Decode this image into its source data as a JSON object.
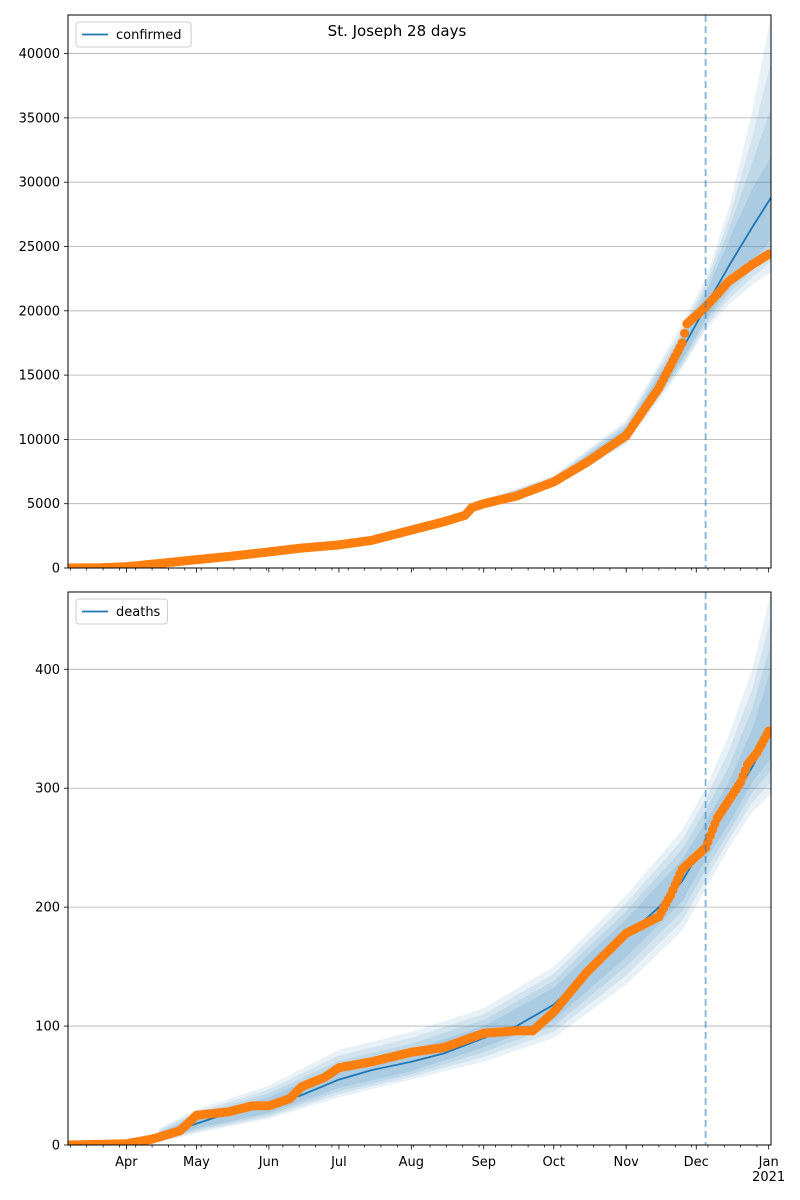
{
  "figure": {
    "title": "St. Joseph 28 days"
  },
  "chart_data": [
    {
      "type": "line",
      "legend": [
        "confirmed"
      ],
      "legend_placement": "upper-left",
      "grid": "horizontal",
      "ylim": [
        0,
        43000
      ],
      "yticks": [
        0,
        5000,
        10000,
        15000,
        20000,
        25000,
        30000,
        35000,
        40000
      ],
      "xlim": [
        "2020-03-07",
        "2021-01-02"
      ],
      "forecast_start": "2020-12-05",
      "colors": {
        "model": "#1f77b4",
        "observed": "#ff7f0e",
        "band": "#1f77b4"
      },
      "series": [
        {
          "name": "confirmed",
          "kind": "model",
          "x": [
            "2020-03-07",
            "2020-03-21",
            "2020-04-01",
            "2020-04-15",
            "2020-05-01",
            "2020-05-15",
            "2020-06-01",
            "2020-06-15",
            "2020-07-01",
            "2020-07-15",
            "2020-08-01",
            "2020-08-15",
            "2020-08-25",
            "2020-09-01",
            "2020-09-15",
            "2020-10-01",
            "2020-10-15",
            "2020-11-01",
            "2020-11-15",
            "2020-11-25",
            "2020-12-05",
            "2020-12-15",
            "2020-12-25",
            "2021-01-02"
          ],
          "y": [
            0,
            20,
            100,
            350,
            650,
            900,
            1250,
            1550,
            1850,
            2200,
            2950,
            3700,
            4300,
            5000,
            5700,
            6700,
            8200,
            10400,
            13800,
            17000,
            20300,
            23500,
            26500,
            28800
          ]
        },
        {
          "name": "band",
          "kind": "interval",
          "x": [
            "2020-09-01",
            "2020-10-01",
            "2020-11-01",
            "2020-11-25",
            "2020-12-05",
            "2020-12-15",
            "2020-12-25",
            "2021-01-02"
          ],
          "outer_low": [
            4700,
            6300,
            9600,
            15500,
            18500,
            20500,
            22000,
            23000
          ],
          "outer_high": [
            5300,
            7200,
            11500,
            19000,
            22500,
            28000,
            35500,
            43000
          ],
          "inner_low": [
            4850,
            6500,
            10000,
            16200,
            19300,
            21800,
            23800,
            25500
          ],
          "inner_high": [
            5150,
            6900,
            10900,
            17800,
            21300,
            25500,
            29500,
            32000
          ]
        },
        {
          "name": "observed",
          "kind": "points",
          "x": [
            "2020-03-07",
            "2020-03-21",
            "2020-04-01",
            "2020-04-15",
            "2020-05-01",
            "2020-05-15",
            "2020-06-01",
            "2020-06-15",
            "2020-07-01",
            "2020-07-15",
            "2020-08-01",
            "2020-08-15",
            "2020-08-24",
            "2020-08-27",
            "2020-09-01",
            "2020-09-15",
            "2020-10-01",
            "2020-10-15",
            "2020-11-01",
            "2020-11-15",
            "2020-11-25",
            "2020-11-27",
            "2020-12-05",
            "2020-12-15",
            "2020-12-25",
            "2021-01-01"
          ],
          "y": [
            0,
            20,
            100,
            350,
            650,
            900,
            1250,
            1550,
            1800,
            2150,
            2950,
            3600,
            4100,
            4700,
            5000,
            5600,
            6700,
            8200,
            10300,
            14000,
            17500,
            19000,
            20300,
            22300,
            23600,
            24400
          ]
        }
      ]
    },
    {
      "type": "line",
      "legend": [
        "deaths"
      ],
      "legend_placement": "upper-left",
      "grid": "horizontal",
      "ylim": [
        0,
        465
      ],
      "yticks": [
        0,
        100,
        200,
        300,
        400
      ],
      "xlim": [
        "2020-03-07",
        "2021-01-02"
      ],
      "forecast_start": "2020-12-05",
      "x_tick_labels": [
        "Apr",
        "May",
        "Jun",
        "Jul",
        "Aug",
        "Sep",
        "Oct",
        "Nov",
        "Dec",
        "Jan\n2021"
      ],
      "x_ticks": [
        "2020-04-01",
        "2020-05-01",
        "2020-06-01",
        "2020-07-01",
        "2020-08-01",
        "2020-09-01",
        "2020-10-01",
        "2020-11-01",
        "2020-12-01",
        "2021-01-01"
      ],
      "colors": {
        "model": "#1f77b4",
        "observed": "#ff7f0e",
        "band": "#1f77b4"
      },
      "series": [
        {
          "name": "deaths",
          "kind": "model",
          "x": [
            "2020-03-07",
            "2020-04-01",
            "2020-04-15",
            "2020-05-01",
            "2020-05-15",
            "2020-06-01",
            "2020-06-15",
            "2020-07-01",
            "2020-07-15",
            "2020-08-01",
            "2020-08-15",
            "2020-09-01",
            "2020-09-15",
            "2020-10-01",
            "2020-10-15",
            "2020-11-01",
            "2020-11-15",
            "2020-11-25",
            "2020-12-05",
            "2020-12-15",
            "2020-12-25",
            "2021-01-02"
          ],
          "y": [
            0,
            1,
            7,
            18,
            27,
            33,
            42,
            55,
            63,
            70,
            77,
            90,
            100,
            118,
            145,
            175,
            200,
            222,
            255,
            285,
            318,
            348
          ]
        },
        {
          "name": "band",
          "kind": "interval",
          "x": [
            "2020-04-15",
            "2020-05-01",
            "2020-06-01",
            "2020-07-01",
            "2020-08-01",
            "2020-09-01",
            "2020-10-01",
            "2020-11-01",
            "2020-11-25",
            "2020-12-05",
            "2020-12-15",
            "2020-12-25",
            "2021-01-02"
          ],
          "outer_low": [
            2,
            10,
            22,
            40,
            55,
            70,
            90,
            135,
            180,
            215,
            250,
            280,
            295
          ],
          "outer_high": [
            14,
            30,
            50,
            80,
            95,
            115,
            150,
            210,
            265,
            300,
            345,
            400,
            465
          ],
          "inner_low": [
            4,
            14,
            27,
            48,
            62,
            82,
            105,
            158,
            205,
            240,
            270,
            305,
            325
          ],
          "inner_high": [
            10,
            24,
            40,
            66,
            80,
            100,
            132,
            190,
            240,
            272,
            305,
            350,
            400
          ]
        },
        {
          "name": "observed",
          "kind": "points",
          "x": [
            "2020-03-07",
            "2020-04-01",
            "2020-04-12",
            "2020-04-24",
            "2020-05-01",
            "2020-05-15",
            "2020-05-25",
            "2020-06-01",
            "2020-06-10",
            "2020-06-15",
            "2020-06-25",
            "2020-07-01",
            "2020-07-15",
            "2020-08-01",
            "2020-08-15",
            "2020-09-01",
            "2020-09-15",
            "2020-09-22",
            "2020-10-01",
            "2020-10-15",
            "2020-11-01",
            "2020-11-15",
            "2020-11-20",
            "2020-11-25",
            "2020-12-05",
            "2020-12-10",
            "2020-12-15",
            "2020-12-20",
            "2020-12-23",
            "2020-12-27",
            "2021-01-01"
          ],
          "y": [
            0,
            1,
            5,
            12,
            25,
            28,
            33,
            33,
            39,
            49,
            57,
            65,
            70,
            78,
            82,
            94,
            96,
            96,
            112,
            145,
            178,
            192,
            210,
            232,
            250,
            275,
            290,
            305,
            320,
            330,
            348
          ]
        }
      ]
    }
  ]
}
